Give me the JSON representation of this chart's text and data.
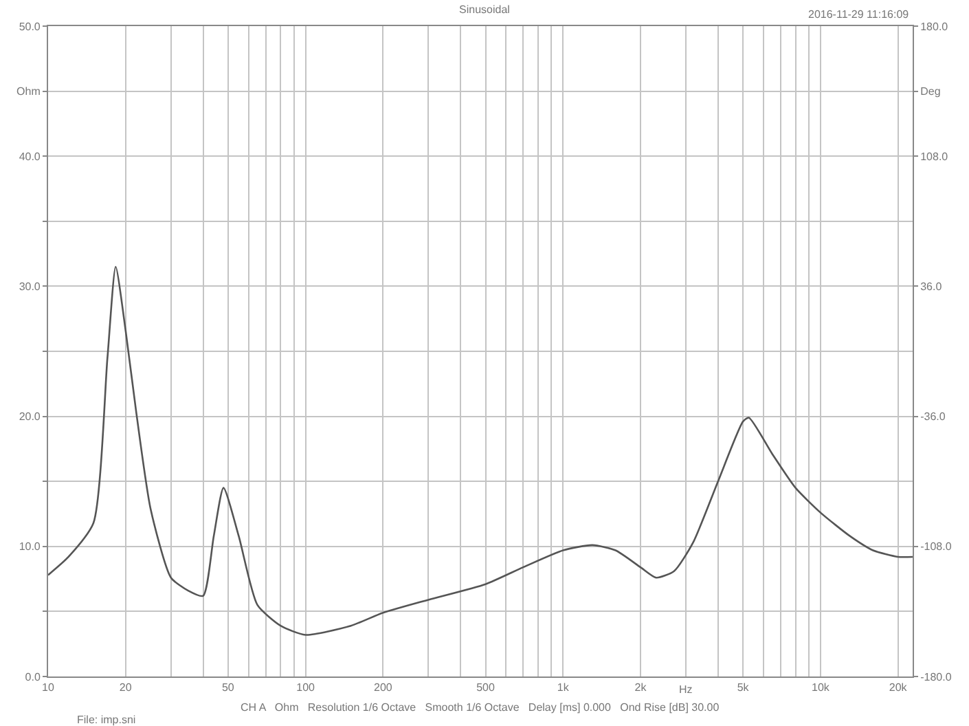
{
  "chart_data": {
    "type": "line",
    "title": "Sinusoidal",
    "xlabel": "Hz",
    "annotations": [
      "2016-11-29 11:16:09",
      "CH A   Ohm   Resolution 1/6 Octave   Smooth 1/6 Octave   Delay [ms] 0.000   Ond Rise [dB] 30.00",
      "File: imp.sni"
    ],
    "x": [
      10,
      12,
      15,
      17,
      18.3,
      20,
      22,
      25,
      30,
      35,
      40,
      44,
      48,
      55,
      65,
      80,
      100,
      150,
      200,
      300,
      500,
      700,
      1000,
      1300,
      1600,
      2000,
      2300,
      2700,
      3200,
      4000,
      5000,
      5270,
      6500,
      8000,
      10000,
      13000,
      16000,
      20000,
      22800
    ],
    "series": [
      {
        "color": "#555555",
        "values": [
          7.8,
          9.2,
          11.8,
          24.5,
          31.5,
          26.6,
          20.3,
          12.9,
          7.6,
          6.6,
          6.2,
          10.8,
          14.5,
          10.8,
          5.5,
          3.9,
          3.2,
          3.9,
          4.9,
          5.9,
          7.1,
          8.4,
          9.7,
          10.1,
          9.7,
          8.4,
          7.6,
          8.1,
          10.3,
          15.0,
          19.6,
          19.9,
          17.1,
          14.5,
          12.6,
          10.8,
          9.7,
          9.2,
          9.2
        ]
      }
    ],
    "log": "x",
    "xlim": [
      10,
      22800
    ],
    "xticks": [
      10,
      20,
      {
        "value": 30,
        "label": null
      },
      {
        "value": 40,
        "label": null
      },
      50,
      {
        "value": 60,
        "label": null
      },
      {
        "value": 70,
        "label": null
      },
      {
        "value": 80,
        "label": null
      },
      {
        "value": 90,
        "label": null
      },
      100,
      200,
      {
        "value": 300,
        "label": null
      },
      {
        "value": 400,
        "label": null
      },
      500,
      {
        "value": 600,
        "label": null
      },
      {
        "value": 700,
        "label": null
      },
      {
        "value": 800,
        "label": null
      },
      {
        "value": 900,
        "label": null
      },
      {
        "value": 1000,
        "label": "1k"
      },
      {
        "value": 2000,
        "label": "2k"
      },
      {
        "value": 3000,
        "label": null
      },
      {
        "value": 4000,
        "label": null
      },
      {
        "value": 5000,
        "label": "5k"
      },
      {
        "value": 6000,
        "label": null
      },
      {
        "value": 7000,
        "label": null
      },
      {
        "value": 8000,
        "label": null
      },
      {
        "value": 9000,
        "label": null
      },
      {
        "value": 10000,
        "label": "10k"
      },
      {
        "value": 20000,
        "label": "20k"
      }
    ],
    "ylim": [
      0,
      50
    ],
    "yticks": [
      {
        "value": 0,
        "label": "0.0"
      },
      {
        "value": 5,
        "label": null
      },
      {
        "value": 10,
        "label": "10.0"
      },
      {
        "value": 15,
        "label": null
      },
      {
        "value": 20,
        "label": "20.0"
      },
      {
        "value": 25,
        "label": null
      },
      {
        "value": 30,
        "label": "30.0"
      },
      {
        "value": 35,
        "label": null
      },
      {
        "value": 40,
        "label": "40.0"
      },
      {
        "value": 45,
        "label": "Ohm"
      },
      {
        "value": 50,
        "label": "50.0"
      }
    ],
    "y2lim": [
      -180,
      180
    ],
    "y2ticks": [
      {
        "value": -180,
        "label": "-180.0"
      },
      {
        "value": -108,
        "label": "-108.0"
      },
      {
        "value": -36,
        "label": "-36.0"
      },
      {
        "value": 36,
        "label": "36.0"
      },
      {
        "value": 108,
        "label": "108.0"
      },
      {
        "value": 144,
        "label": "Deg"
      },
      {
        "value": 180,
        "label": "180.0"
      }
    ],
    "grid": true,
    "legend": false,
    "marker": "none",
    "line_style": "solid"
  }
}
